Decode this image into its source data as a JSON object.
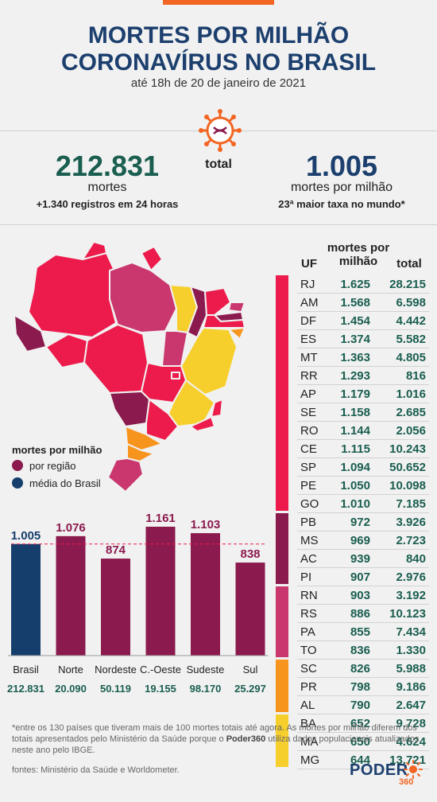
{
  "header": {
    "title_line1": "MORTES POR MILHÃO",
    "title_line2": "CORONAVÍRUS NO BRASIL",
    "subtitle": "até 18h de 20 de janeiro de 2021"
  },
  "summary": {
    "total_label": "total",
    "deaths_value": "212.831",
    "deaths_label": "mortes",
    "deaths_note": "+1.340 registros em 24 horas",
    "per_million_value": "1.005",
    "per_million_label": "mortes por milhão",
    "per_million_note": "23ª maior taxa no mundo*"
  },
  "legend": {
    "title": "mortes por milhão",
    "region_label": "por região",
    "average_label": "média do Brasil"
  },
  "table": {
    "header_mpm_line1": "mortes por",
    "header_mpm_line2": "milhão",
    "header_uf": "UF",
    "header_total": "total",
    "rows": [
      {
        "uf": "RJ",
        "mpm": "1.625",
        "total": "28.215"
      },
      {
        "uf": "AM",
        "mpm": "1.568",
        "total": "6.598"
      },
      {
        "uf": "DF",
        "mpm": "1.454",
        "total": "4.442"
      },
      {
        "uf": "ES",
        "mpm": "1.374",
        "total": "5.582"
      },
      {
        "uf": "MT",
        "mpm": "1.363",
        "total": "4.805"
      },
      {
        "uf": "RR",
        "mpm": "1.293",
        "total": "816"
      },
      {
        "uf": "AP",
        "mpm": "1.179",
        "total": "1.016"
      },
      {
        "uf": "SE",
        "mpm": "1.158",
        "total": "2.685"
      },
      {
        "uf": "RO",
        "mpm": "1.144",
        "total": "2.056"
      },
      {
        "uf": "CE",
        "mpm": "1.115",
        "total": "10.243"
      },
      {
        "uf": "SP",
        "mpm": "1.094",
        "total": "50.652"
      },
      {
        "uf": "PE",
        "mpm": "1.050",
        "total": "10.098"
      },
      {
        "uf": "GO",
        "mpm": "1.010",
        "total": "7.185"
      },
      {
        "uf": "PB",
        "mpm": "972",
        "total": "3.926"
      },
      {
        "uf": "MS",
        "mpm": "969",
        "total": "2.723"
      },
      {
        "uf": "AC",
        "mpm": "939",
        "total": "840"
      },
      {
        "uf": "PI",
        "mpm": "907",
        "total": "2.976"
      },
      {
        "uf": "RN",
        "mpm": "903",
        "total": "3.192"
      },
      {
        "uf": "RS",
        "mpm": "886",
        "total": "10.123"
      },
      {
        "uf": "PA",
        "mpm": "855",
        "total": "7.434"
      },
      {
        "uf": "TO",
        "mpm": "836",
        "total": "1.330"
      },
      {
        "uf": "SC",
        "mpm": "826",
        "total": "5.988"
      },
      {
        "uf": "PR",
        "mpm": "798",
        "total": "9.186"
      },
      {
        "uf": "AL",
        "mpm": "790",
        "total": "2.647"
      },
      {
        "uf": "BA",
        "mpm": "652",
        "total": "9.728"
      },
      {
        "uf": "MA",
        "mpm": "650",
        "total": "4.624"
      },
      {
        "uf": "MG",
        "mpm": "644",
        "total": "13.721"
      }
    ],
    "groups": [
      {
        "color": "#ec1b4b",
        "row_count": 13
      },
      {
        "color": "#8b1a4e",
        "row_count": 4
      },
      {
        "color": "#c9376e",
        "row_count": 4
      },
      {
        "color": "#f7941d",
        "row_count": 3
      },
      {
        "color": "#f6cf2c",
        "row_count": 3
      }
    ]
  },
  "chart_data": {
    "type": "bar",
    "categories": [
      "Brasil",
      "Norte",
      "Nordeste",
      "C.-Oeste",
      "Sudeste",
      "Sul"
    ],
    "values": [
      1005,
      1076,
      874,
      1161,
      1103,
      838
    ],
    "value_labels": [
      "1.005",
      "1.076",
      "874",
      "1.161",
      "1.103",
      "838"
    ],
    "totals": [
      "212.831",
      "20.090",
      "50.119",
      "19.155",
      "98.170",
      "25.297"
    ],
    "colors": [
      "#163e6c",
      "#8b1a4e",
      "#8b1a4e",
      "#8b1a4e",
      "#8b1a4e",
      "#8b1a4e"
    ],
    "reference_line": 1005,
    "ylim": [
      0,
      1161
    ]
  },
  "colors": {
    "brand_blue": "#1c3f6e",
    "region": "#8b1a4e",
    "average": "#163e6c",
    "red": "#ec1b4b",
    "pink": "#c9376e",
    "orange": "#f7941d",
    "yellow": "#f6cf2c",
    "number_green": "#1a5e50"
  },
  "icons": {
    "virus": "virus-icon",
    "logo_sun": "sun-logo-icon"
  },
  "footer": {
    "footnote_a": "*entre os 130 países que tiveram mais de 100 mortes totais até agora. As mortes por milhão diferem dos totais apresentados pelo Ministério da Saúde porque o ",
    "footnote_brand": "Poder360",
    "footnote_b": " utiliza dados populacionais atualizados neste ano pelo IBGE.",
    "sources": "fontes: Ministério da Saúde e Worldometer.",
    "logo_text": "PODER",
    "logo_sub": "360"
  }
}
